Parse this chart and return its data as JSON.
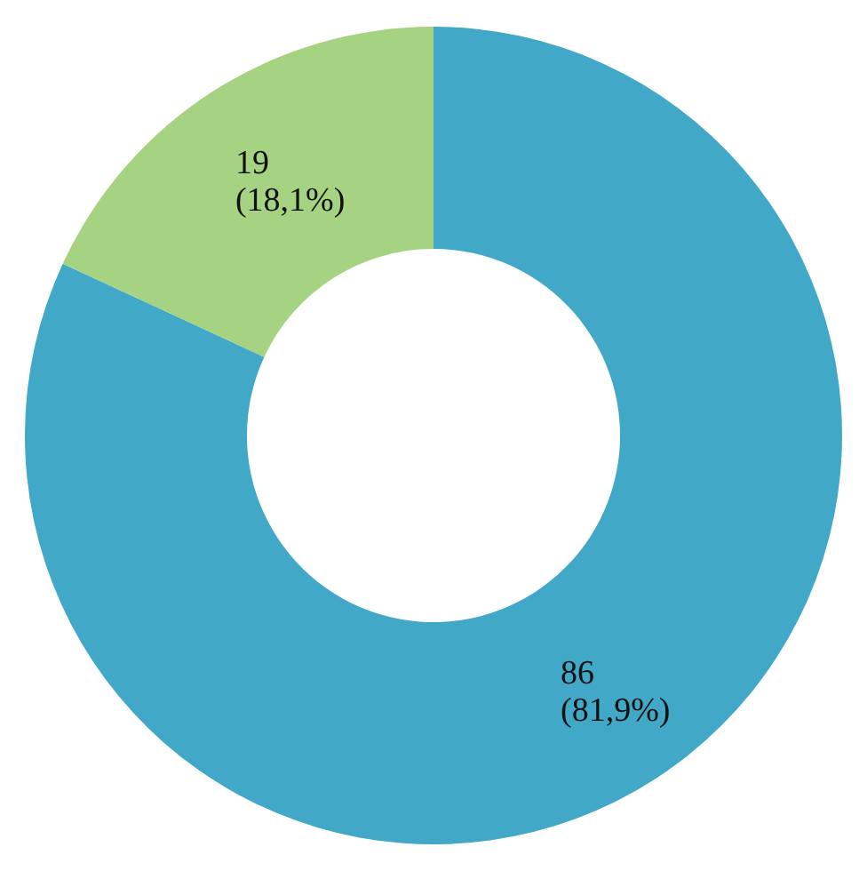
{
  "chart_data": {
    "type": "donut",
    "categories": [
      null,
      null
    ],
    "values": [
      86,
      19
    ],
    "colors": [
      "#42a8c7",
      "#a6d382"
    ],
    "value_labels": [
      "86\n(81,9%)",
      "19\n(18,1%)"
    ]
  }
}
